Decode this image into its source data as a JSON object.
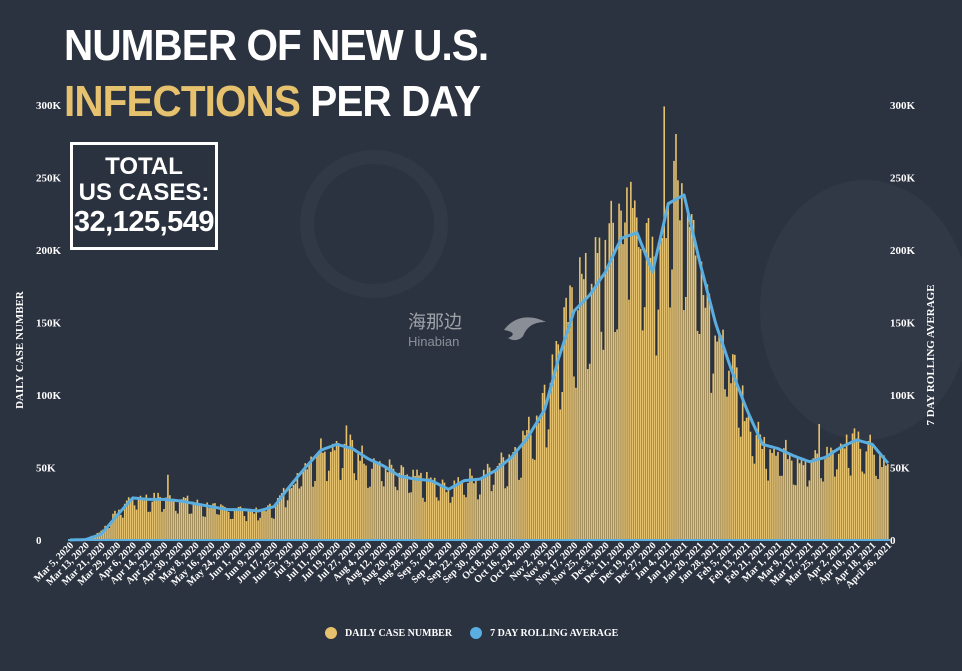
{
  "header": {
    "title_line1": "NUMBER OF NEW U.S.",
    "title_line2_highlight": "INFECTIONS",
    "title_line2_rest": "PER DAY"
  },
  "total_box": {
    "line1": "TOTAL",
    "line2": "US CASES:",
    "value": "32,125,549"
  },
  "axes": {
    "left_label": "DAILY CASE NUMBER",
    "right_label": "7 DAY ROLLING AVERAGE",
    "y_ticks": [
      "0",
      "50K",
      "100K",
      "150K",
      "200K",
      "250K",
      "300K"
    ],
    "x_ticks": [
      "Mar 5, 2020",
      "Mar 13, 2020",
      "Mar 21, 2020",
      "Mar 29, 2020",
      "Apr 6, 2020",
      "Apr 14, 2020",
      "Apr 22, 2020",
      "Apr 30, 2020",
      "May 8, 2020",
      "May 16, 2020",
      "May 24, 2020",
      "Jun 1, 2020",
      "Jun 9, 2020",
      "Jun 17, 2020",
      "Jun 25, 2020",
      "Jul 3, 2020",
      "Jul 11, 2020",
      "Jul 19, 2020",
      "Jul 27, 2020",
      "Aug 4, 2020",
      "Aug 12, 2020",
      "Aug 20, 2020",
      "Aug 28, 2020",
      "Sep 5, 2020",
      "Sep 14, 2020",
      "Sep 22, 2020",
      "Sep 30, 2020",
      "Oct 8, 2020",
      "Oct 16, 2020",
      "Oct 24, 2020",
      "Nov 2, 2020",
      "Nov 9, 2020",
      "Nov 17, 2020",
      "Nov 25, 2020",
      "Dec 3, 2020",
      "Dec 11, 2020",
      "Dec 19, 2020",
      "Dec 27, 2020",
      "Jan 4, 2021",
      "Jan 12, 2021",
      "Jan 20, 2021",
      "Jan 28, 2021",
      "Feb 5, 2021",
      "Feb 13, 2021",
      "Feb 21, 2021",
      "Mar 1, 2021",
      "Mar 9, 2021",
      "Mar 17, 2021",
      "Mar 25, 2021",
      "Apr 2, 2021",
      "Apr 10, 2021",
      "Apr 18, 2021",
      "April 26, 2021"
    ]
  },
  "legend": {
    "daily_label": "DAILY CASE NUMBER",
    "avg_label": "7 DAY ROLLING AVERAGE"
  },
  "watermark": {
    "cn": "海那边",
    "en": "Hinabian"
  },
  "colors": {
    "bars": "#e6c26e",
    "line": "#5aaee0",
    "background": "#2b3240",
    "highlight": "#e6c26e"
  },
  "chart_data": {
    "type": "bar",
    "x_start": "Mar 5, 2020",
    "x_end": "April 26, 2021",
    "ylim": [
      0,
      300000
    ],
    "series": [
      {
        "name": "DAILY CASE NUMBER",
        "type": "bar",
        "points": [
          [
            "Mar 5, 2020",
            0
          ],
          [
            "Mar 13, 2020",
            500
          ],
          [
            "Mar 21, 2020",
            6000
          ],
          [
            "Mar 29, 2020",
            19000
          ],
          [
            "Apr 6, 2020",
            30000
          ],
          [
            "Apr 14, 2020",
            28000
          ],
          [
            "Apr 22, 2020",
            29000
          ],
          [
            "Apr 30, 2020",
            28000
          ],
          [
            "May 8, 2020",
            25000
          ],
          [
            "May 16, 2020",
            23000
          ],
          [
            "May 24, 2020",
            21000
          ],
          [
            "Jun 1, 2020",
            21000
          ],
          [
            "Jun 9, 2020",
            19000
          ],
          [
            "Jun 17, 2020",
            23000
          ],
          [
            "Jun 25, 2020",
            37000
          ],
          [
            "Jul 3, 2020",
            51000
          ],
          [
            "Jul 11, 2020",
            63000
          ],
          [
            "Jul 19, 2020",
            66000
          ],
          [
            "Jul 27, 2020",
            63000
          ],
          [
            "Aug 4, 2020",
            54000
          ],
          [
            "Aug 12, 2020",
            51000
          ],
          [
            "Aug 20, 2020",
            45000
          ],
          [
            "Aug 28, 2020",
            42000
          ],
          [
            "Sep 5, 2020",
            40000
          ],
          [
            "Sep 14, 2020",
            35000
          ],
          [
            "Sep 22, 2020",
            43000
          ],
          [
            "Sep 30, 2020",
            42000
          ],
          [
            "Oct 8, 2020",
            50000
          ],
          [
            "Oct 16, 2020",
            58000
          ],
          [
            "Oct 24, 2020",
            72000
          ],
          [
            "Nov 2, 2020",
            95000
          ],
          [
            "Nov 9, 2020",
            130000
          ],
          [
            "Nov 17, 2020",
            160000
          ],
          [
            "Nov 25, 2020",
            175000
          ],
          [
            "Dec 3, 2020",
            195000
          ],
          [
            "Dec 11, 2020",
            215000
          ],
          [
            "Dec 19, 2020",
            220000
          ],
          [
            "Dec 27, 2020",
            185000
          ],
          [
            "Jan 4, 2021",
            230000
          ],
          [
            "Jan 12, 2021",
            240000
          ],
          [
            "Jan 20, 2021",
            190000
          ],
          [
            "Jan 28, 2021",
            150000
          ],
          [
            "Feb 5, 2021",
            118000
          ],
          [
            "Feb 13, 2021",
            85000
          ],
          [
            "Feb 21, 2021",
            66000
          ],
          [
            "Mar 1, 2021",
            62000
          ],
          [
            "Mar 9, 2021",
            58000
          ],
          [
            "Mar 17, 2021",
            53000
          ],
          [
            "Mar 25, 2021",
            57000
          ],
          [
            "Apr 2, 2021",
            64000
          ],
          [
            "Apr 10, 2021",
            68000
          ],
          [
            "Apr 18, 2021",
            66000
          ],
          [
            "April 26, 2021",
            48000
          ]
        ],
        "spikes": [
          [
            "Apr 24, 2020",
            45000
          ],
          [
            "Jul 24, 2020",
            79000
          ],
          [
            "Nov 6, 2020",
            128000
          ],
          [
            "Nov 20, 2020",
            195000
          ],
          [
            "Dec 10, 2020",
            232000
          ],
          [
            "Dec 16, 2020",
            247000
          ],
          [
            "Jan 2, 2021",
            299000
          ],
          [
            "Jan 8, 2021",
            280000
          ],
          [
            "Mar 22, 2021",
            80000
          ],
          [
            "Apr 9, 2021",
            77000
          ]
        ]
      },
      {
        "name": "7 DAY ROLLING AVERAGE",
        "type": "line",
        "points": [
          [
            "Mar 5, 2020",
            0
          ],
          [
            "Mar 13, 2020",
            300
          ],
          [
            "Mar 21, 2020",
            4000
          ],
          [
            "Mar 29, 2020",
            17000
          ],
          [
            "Apr 6, 2020",
            29000
          ],
          [
            "Apr 14, 2020",
            28000
          ],
          [
            "Apr 22, 2020",
            28000
          ],
          [
            "Apr 30, 2020",
            27000
          ],
          [
            "May 8, 2020",
            25000
          ],
          [
            "May 16, 2020",
            23000
          ],
          [
            "May 24, 2020",
            21000
          ],
          [
            "Jun 1, 2020",
            21000
          ],
          [
            "Jun 9, 2020",
            20000
          ],
          [
            "Jun 17, 2020",
            23000
          ],
          [
            "Jun 25, 2020",
            37000
          ],
          [
            "Jul 3, 2020",
            50000
          ],
          [
            "Jul 11, 2020",
            62000
          ],
          [
            "Jul 19, 2020",
            66000
          ],
          [
            "Jul 27, 2020",
            63000
          ],
          [
            "Aug 4, 2020",
            56000
          ],
          [
            "Aug 12, 2020",
            51000
          ],
          [
            "Aug 20, 2020",
            44000
          ],
          [
            "Aug 28, 2020",
            42000
          ],
          [
            "Sep 5, 2020",
            41000
          ],
          [
            "Sep 14, 2020",
            35000
          ],
          [
            "Sep 22, 2020",
            41000
          ],
          [
            "Sep 30, 2020",
            42000
          ],
          [
            "Oct 8, 2020",
            48000
          ],
          [
            "Oct 16, 2020",
            57000
          ],
          [
            "Oct 24, 2020",
            70000
          ],
          [
            "Nov 2, 2020",
            90000
          ],
          [
            "Nov 9, 2020",
            125000
          ],
          [
            "Nov 17, 2020",
            158000
          ],
          [
            "Nov 25, 2020",
            169000
          ],
          [
            "Dec 3, 2020",
            185000
          ],
          [
            "Dec 11, 2020",
            208000
          ],
          [
            "Dec 19, 2020",
            212000
          ],
          [
            "Dec 27, 2020",
            185000
          ],
          [
            "Jan 4, 2021",
            232000
          ],
          [
            "Jan 12, 2021",
            238000
          ],
          [
            "Jan 20, 2021",
            192000
          ],
          [
            "Jan 28, 2021",
            150000
          ],
          [
            "Feb 5, 2021",
            118000
          ],
          [
            "Feb 13, 2021",
            90000
          ],
          [
            "Feb 21, 2021",
            66000
          ],
          [
            "Mar 1, 2021",
            63000
          ],
          [
            "Mar 9, 2021",
            58000
          ],
          [
            "Mar 17, 2021",
            54000
          ],
          [
            "Mar 25, 2021",
            57000
          ],
          [
            "Apr 2, 2021",
            64000
          ],
          [
            "Apr 10, 2021",
            69000
          ],
          [
            "Apr 18, 2021",
            66000
          ],
          [
            "April 26, 2021",
            53000
          ]
        ]
      }
    ]
  }
}
